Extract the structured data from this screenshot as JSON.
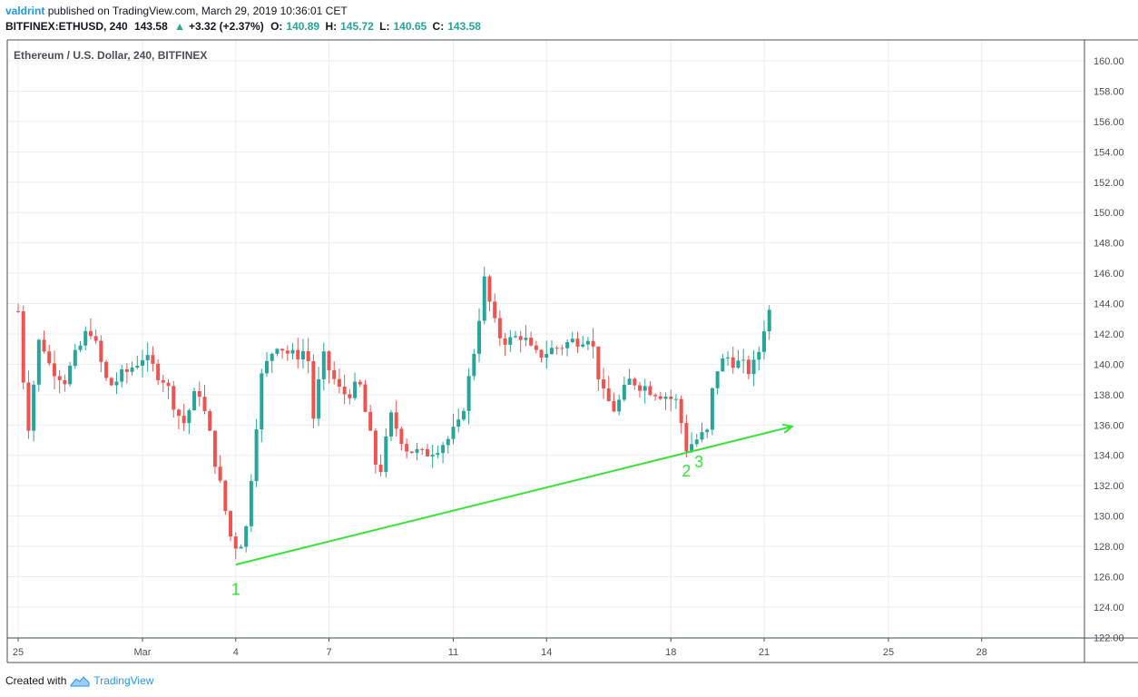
{
  "header": {
    "author": "valdrint",
    "published_text": "published on TradingView.com, March 29, 2019 10:36:01 CET",
    "symbol": "BITFINEX:ETHUSD, 240",
    "last": "143.58",
    "change": "+3.32 (+2.37%)",
    "open_label": "O:",
    "open": "140.89",
    "high_label": "H:",
    "high": "145.72",
    "low_label": "L:",
    "low": "140.65",
    "close_label": "C:",
    "close": "143.58"
  },
  "footer": {
    "created_with": "Created with",
    "brand": "TradingView"
  },
  "colors": {
    "up": "#26a69a",
    "down": "#ef5350",
    "trendline": "#33e533",
    "grid": "#e9eef3",
    "brand": "#2196f3"
  },
  "chart_data": {
    "type": "candlestick",
    "title": "Ethereum / U.S. Dollar, 240, BITFINEX",
    "ylim": [
      122,
      161
    ],
    "y_ticks": [
      "122.00",
      "124.00",
      "126.00",
      "128.00",
      "130.00",
      "132.00",
      "134.00",
      "136.00",
      "138.00",
      "140.00",
      "142.00",
      "144.00",
      "146.00",
      "148.00",
      "150.00",
      "152.00",
      "154.00",
      "156.00",
      "158.00",
      "160.00"
    ],
    "x_labels": [
      {
        "label": "25",
        "day": 0
      },
      {
        "label": "Mar",
        "day": 4
      },
      {
        "label": "4",
        "day": 7
      },
      {
        "label": "7",
        "day": 10
      },
      {
        "label": "11",
        "day": 14
      },
      {
        "label": "14",
        "day": 17
      },
      {
        "label": "18",
        "day": 21
      },
      {
        "label": "21",
        "day": 24
      },
      {
        "label": "25",
        "day": 28
      },
      {
        "label": "28",
        "day": 31
      }
    ],
    "candles_per_day": 6,
    "ohlc_anchors": [
      {
        "day": 0.0,
        "price": 143.5
      },
      {
        "day": 0.3,
        "price": 135.5
      },
      {
        "day": 0.7,
        "price": 142.0
      },
      {
        "day": 1.0,
        "price": 140.0
      },
      {
        "day": 1.5,
        "price": 139.0
      },
      {
        "day": 2.3,
        "price": 142.5
      },
      {
        "day": 2.9,
        "price": 138.5
      },
      {
        "day": 3.5,
        "price": 139.5
      },
      {
        "day": 4.0,
        "price": 140.5
      },
      {
        "day": 4.7,
        "price": 139.0
      },
      {
        "day": 5.3,
        "price": 136.0
      },
      {
        "day": 5.8,
        "price": 138.5
      },
      {
        "day": 6.2,
        "price": 135.0
      },
      {
        "day": 6.9,
        "price": 128.0
      },
      {
        "day": 7.3,
        "price": 128.5
      },
      {
        "day": 7.8,
        "price": 139.0
      },
      {
        "day": 8.3,
        "price": 141.5
      },
      {
        "day": 8.8,
        "price": 140.5
      },
      {
        "day": 9.3,
        "price": 141.0
      },
      {
        "day": 9.5,
        "price": 136.5
      },
      {
        "day": 9.8,
        "price": 140.5
      },
      {
        "day": 10.4,
        "price": 138.0
      },
      {
        "day": 11.0,
        "price": 138.5
      },
      {
        "day": 11.6,
        "price": 132.5
      },
      {
        "day": 12.0,
        "price": 136.5
      },
      {
        "day": 12.5,
        "price": 134.5
      },
      {
        "day": 13.0,
        "price": 134.0
      },
      {
        "day": 13.8,
        "price": 135.0
      },
      {
        "day": 14.2,
        "price": 136.0
      },
      {
        "day": 14.6,
        "price": 140.0
      },
      {
        "day": 15.0,
        "price": 145.5
      },
      {
        "day": 15.4,
        "price": 142.0
      },
      {
        "day": 15.8,
        "price": 141.5
      },
      {
        "day": 16.2,
        "price": 142.0
      },
      {
        "day": 16.6,
        "price": 140.5
      },
      {
        "day": 17.2,
        "price": 141.0
      },
      {
        "day": 17.8,
        "price": 141.5
      },
      {
        "day": 18.4,
        "price": 142.0
      },
      {
        "day": 18.8,
        "price": 138.0
      },
      {
        "day": 19.2,
        "price": 137.0
      },
      {
        "day": 19.7,
        "price": 139.0
      },
      {
        "day": 20.2,
        "price": 138.5
      },
      {
        "day": 20.8,
        "price": 138.0
      },
      {
        "day": 21.2,
        "price": 137.5
      },
      {
        "day": 21.5,
        "price": 134.5
      },
      {
        "day": 21.8,
        "price": 135.0
      },
      {
        "day": 22.2,
        "price": 135.5
      },
      {
        "day": 22.4,
        "price": 139.5
      },
      {
        "day": 22.8,
        "price": 140.5
      },
      {
        "day": 23.2,
        "price": 140.0
      },
      {
        "day": 23.6,
        "price": 139.5
      },
      {
        "day": 23.85,
        "price": 141.0
      },
      {
        "day": 24.1,
        "price": 143.5
      }
    ],
    "annotations": [
      {
        "text": "1",
        "day": 7.0,
        "price": 124.8
      },
      {
        "text": "2",
        "day": 21.5,
        "price": 132.6
      },
      {
        "text": "3",
        "day": 21.9,
        "price": 133.2
      }
    ],
    "trendline": {
      "start": {
        "day": 7.0,
        "price": 126.8
      },
      "end": {
        "day": 24.9,
        "price": 135.9
      }
    }
  }
}
